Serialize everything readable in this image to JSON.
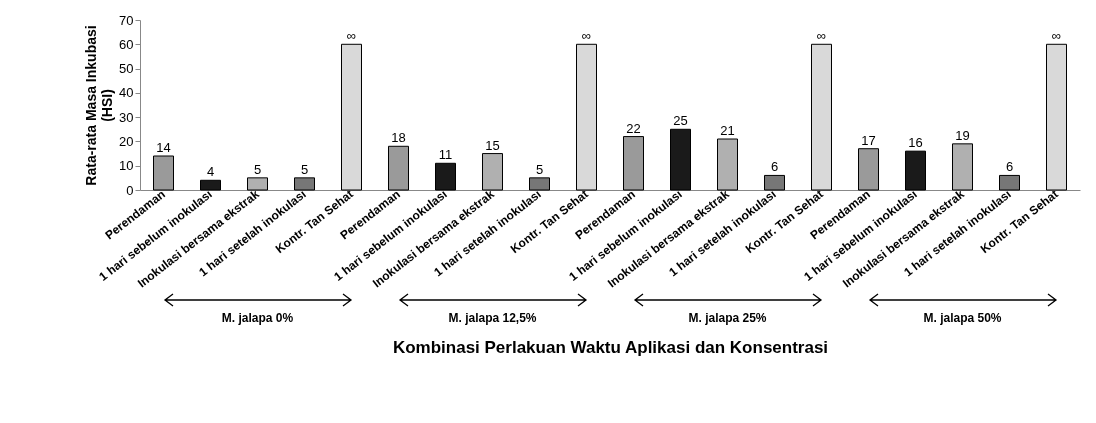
{
  "chart_data": {
    "type": "bar",
    "xlabel": "Kombinasi Perlakuan Waktu Aplikasi dan Konsentrasi",
    "ylabel": "Rata-rata Masa Inkubasi (HSI)",
    "categories": [
      "Perendaman",
      "1 hari sebelum inokulasi",
      "Inokulasi bersama ekstrak",
      "1 hari setelah inokulasi",
      "Kontr. Tan Sehat",
      "Perendaman",
      "1 hari sebelum inokulasi",
      "Inokulasi bersama ekstrak",
      "1 hari setelah inokulasi",
      "Kontr. Tan Sehat",
      "Perendaman",
      "1 hari sebelum inokulasi",
      "Inokulasi bersama ekstrak",
      "1 hari setelah inokulasi",
      "Kontr. Tan Sehat",
      "Perendaman",
      "1 hari sebelum inokulasi",
      "Inokulasi bersama ekstrak",
      "1 hari setelah inokulasi",
      "Kontr. Tan Sehat"
    ],
    "values": [
      14,
      4,
      5,
      5,
      60,
      18,
      11,
      15,
      5,
      60,
      22,
      25,
      21,
      6,
      60,
      17,
      16,
      19,
      6,
      60
    ],
    "value_labels": [
      "14",
      "4",
      "5",
      "5",
      "∞",
      "18",
      "11",
      "15",
      "5",
      "∞",
      "22",
      "25",
      "21",
      "6",
      "∞",
      "17",
      "16",
      "19",
      "6",
      "∞"
    ],
    "colors": [
      "#9a9a9a",
      "#1a1a1a",
      "#b0b0b0",
      "#777777",
      "#d9d9d9",
      "#9a9a9a",
      "#1a1a1a",
      "#b0b0b0",
      "#777777",
      "#d9d9d9",
      "#9a9a9a",
      "#1a1a1a",
      "#b0b0b0",
      "#777777",
      "#d9d9d9",
      "#9a9a9a",
      "#1a1a1a",
      "#b0b0b0",
      "#777777",
      "#d9d9d9"
    ],
    "ylim": [
      0,
      70
    ],
    "yticks": [
      0,
      10,
      20,
      30,
      40,
      50,
      60,
      70
    ],
    "annotations": [
      "M. jalapa 0%",
      "M. jalapa 12,5%",
      "M. jalapa 25%",
      "M. jalapa 50%"
    ]
  }
}
